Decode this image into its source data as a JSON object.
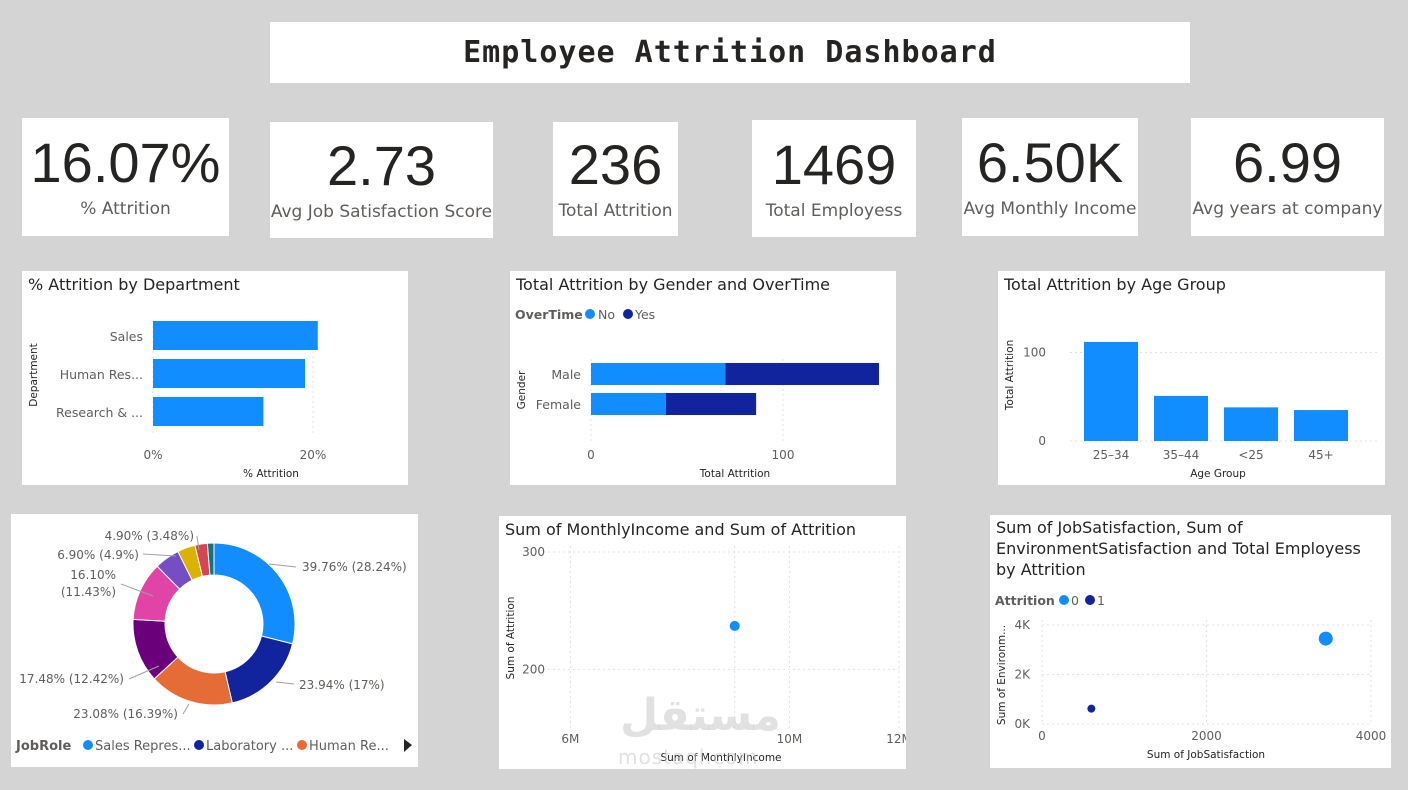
{
  "title": "Employee Attrition Dashboard",
  "kpis": [
    {
      "value": "16.07%",
      "label": "% Attrition"
    },
    {
      "value": "2.73",
      "label": "Avg Job Satisfaction Score"
    },
    {
      "value": "236",
      "label": "Total Attrition"
    },
    {
      "value": "1469",
      "label": "Total Employess"
    },
    {
      "value": "6.50K",
      "label": "Avg Monthly Income"
    },
    {
      "value": "6.99",
      "label": "Avg years at company"
    }
  ],
  "colors": {
    "primary": "#118DFF",
    "secondary": "#12239E",
    "orange": "#E66C37",
    "purple": "#6B007B",
    "pink": "#E044A7",
    "violet": "#744EC2",
    "yellow": "#D9B300",
    "red": "#D64550",
    "teal": "#197278"
  },
  "watermark": {
    "arabic": "مستقل",
    "latin": "mostaql.com"
  },
  "chart_data": [
    {
      "id": "dept",
      "type": "bar",
      "orientation": "horizontal",
      "title": "% Attrition by Department",
      "categories": [
        "Sales",
        "Human Res...",
        "Research & ..."
      ],
      "values": [
        20.6,
        19.0,
        13.8
      ],
      "xlabel": "% Attrition",
      "ylabel": "Department",
      "xlim": [
        0,
        25
      ],
      "ticks": [
        0,
        20
      ],
      "tick_labels": [
        "0%",
        "20%"
      ]
    },
    {
      "id": "gender",
      "type": "bar",
      "orientation": "horizontal",
      "stacked": true,
      "title": "Total Attrition by Gender and OverTime",
      "legend_title": "OverTime",
      "categories": [
        "Male",
        "Female"
      ],
      "series": [
        {
          "name": "No",
          "values": [
            70,
            39
          ]
        },
        {
          "name": "Yes",
          "values": [
            80,
            47
          ]
        }
      ],
      "xlabel": "Total Attrition",
      "ylabel": "Gender",
      "xlim": [
        0,
        150
      ],
      "ticks": [
        0,
        100
      ],
      "tick_labels": [
        "0",
        "100"
      ]
    },
    {
      "id": "age",
      "type": "bar",
      "title": "Total Attrition by Age Group",
      "categories": [
        "25–34",
        "35–44",
        "<25",
        "45+"
      ],
      "values": [
        112,
        51,
        38,
        35
      ],
      "xlabel": "Age Group",
      "ylabel": "Total Attrition",
      "ylim": [
        0,
        130
      ],
      "ticks": [
        0,
        100
      ],
      "tick_labels": [
        "0",
        "100"
      ]
    },
    {
      "id": "jobrole",
      "type": "pie",
      "donut": true,
      "legend_title": "JobRole",
      "legend": [
        "Sales Repres...",
        "Laboratory ...",
        "Human Re..."
      ],
      "slices": [
        {
          "value": 39.76,
          "label": "39.76% (28.24%)"
        },
        {
          "value": 23.94,
          "label": "23.94% (17%)"
        },
        {
          "value": 23.08,
          "label": "23.08% (16.39%)"
        },
        {
          "value": 17.48,
          "label": "17.48% (12.42%)"
        },
        {
          "value": 16.1,
          "label_line1": "16.10%",
          "label_line2": "(11.43%)"
        },
        {
          "value": 6.9,
          "label": "6.90% (4.9%)"
        },
        {
          "value": 4.9,
          "label": "4.90% (3.48%)"
        },
        {
          "value": 3.4
        },
        {
          "value": 1.8
        }
      ]
    },
    {
      "id": "income",
      "type": "scatter",
      "title": "Sum of MonthlyIncome and Sum of Attrition",
      "points": [
        {
          "x": 9.0,
          "y": 237
        }
      ],
      "xlabel": "Sum of MonthlyIncome",
      "ylabel": "Sum of Attrition",
      "xlim": [
        5.5,
        12
      ],
      "ylim": [
        150,
        300
      ],
      "xticks": [
        6,
        9,
        10,
        12
      ],
      "xtick_labels": [
        "6M",
        "",
        "10M",
        "12M"
      ],
      "yticks": [
        200,
        300
      ],
      "ytick_labels": [
        "200",
        "300"
      ]
    },
    {
      "id": "jobsat",
      "type": "scatter",
      "title_lines": [
        "Sum of JobSatisfaction, Sum of",
        "EnvironmentSatisfaction and Total Employess",
        "by Attrition"
      ],
      "legend_title": "Attrition",
      "series": [
        {
          "name": "0",
          "points": [
            {
              "x": 3450,
              "y": 3450
            }
          ]
        },
        {
          "name": "1",
          "points": [
            {
              "x": 600,
              "y": 620
            }
          ]
        }
      ],
      "xlabel": "Sum of JobSatisfaction",
      "ylabel": "Sum of Environm...",
      "xlim": [
        0,
        4000
      ],
      "ylim": [
        0,
        4000
      ],
      "xticks": [
        0,
        2000,
        4000
      ],
      "xtick_labels": [
        "0",
        "2000",
        "4000"
      ],
      "yticks": [
        0,
        2000,
        4000
      ],
      "ytick_labels": [
        "0K",
        "2K",
        "4K"
      ]
    }
  ]
}
